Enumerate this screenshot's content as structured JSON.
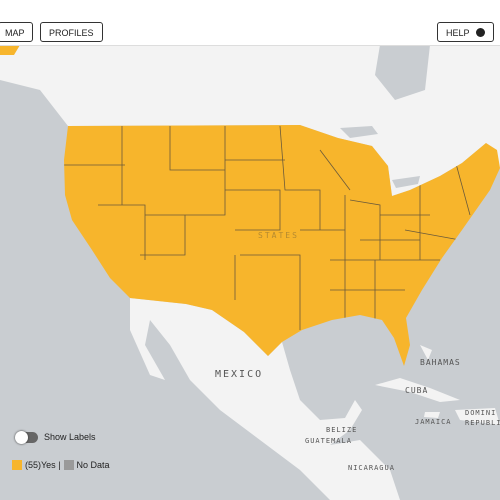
{
  "toolbar": {
    "buttons": [
      "MAP",
      "PROFILES"
    ],
    "help": "HELP"
  },
  "map_labels": {
    "us": "STATES",
    "mexico": "MEXICO",
    "bahamas": "BAHAMAS",
    "cuba": "CUBA",
    "jamaica": "JAMAICA",
    "dominican_1": "DOMINI",
    "dominican_2": "REPUBLIC",
    "belize": "BELIZE",
    "guatemala": "GUATEMALA",
    "nicaragua": "NICARAGUA"
  },
  "toggle": {
    "label": "Show Labels"
  },
  "legend": [
    {
      "label": "(55)Yes |",
      "color": "#f7b52c"
    },
    {
      "label": "No Data",
      "color": "#9a9a9a"
    }
  ]
}
